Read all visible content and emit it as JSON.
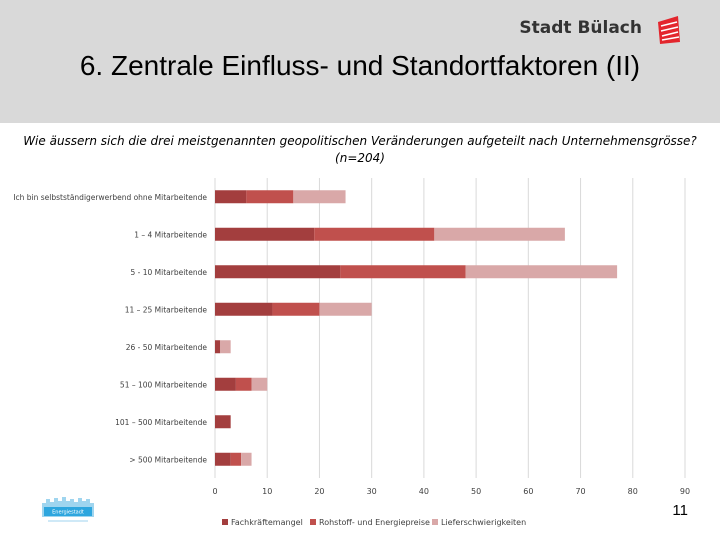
{
  "slide": {
    "title": "6. Zentrale Einfluss- und Standortfaktoren (II)",
    "brand": "Stadt Bülach",
    "page_number": "11",
    "logo_text": "Energiestadt"
  },
  "colors": {
    "header_bg": "#d9d9d9",
    "series": [
      "#a33e3e",
      "#c0504d",
      "#d9a8a8"
    ],
    "brand_red": "#e3262d"
  },
  "chart_data": {
    "type": "bar",
    "orientation": "horizontal",
    "stacked": true,
    "title": "Wie äussern sich die drei meistgenannten geopolitischen Veränderungen aufgeteilt nach Unternehmensgrösse?",
    "subtitle": "(n=204)",
    "categories": [
      "Ich bin selbstständigerwerbend ohne Mitarbeitende",
      "1 – 4 Mitarbeitende",
      "5 - 10 Mitarbeitende",
      "11 – 25 Mitarbeitende",
      "26 - 50 Mitarbeitende",
      "51 – 100 Mitarbeitende",
      "101 – 500 Mitarbeitende",
      "> 500 Mitarbeitende"
    ],
    "series": [
      {
        "name": "Fachkräftemangel",
        "values": [
          6,
          19,
          24,
          11,
          1,
          4,
          3,
          3
        ]
      },
      {
        "name": "Rohstoff- und Energiepreise",
        "values": [
          9,
          23,
          24,
          9,
          0,
          3,
          0,
          2
        ]
      },
      {
        "name": "Lieferschwierigkeiten",
        "values": [
          10,
          25,
          29,
          10,
          2,
          3,
          0,
          2
        ]
      }
    ],
    "xlim": [
      0,
      90
    ],
    "xticks": [
      0,
      10,
      20,
      30,
      40,
      50,
      60,
      70,
      80,
      90
    ],
    "grid": true,
    "legend_position": "bottom"
  }
}
